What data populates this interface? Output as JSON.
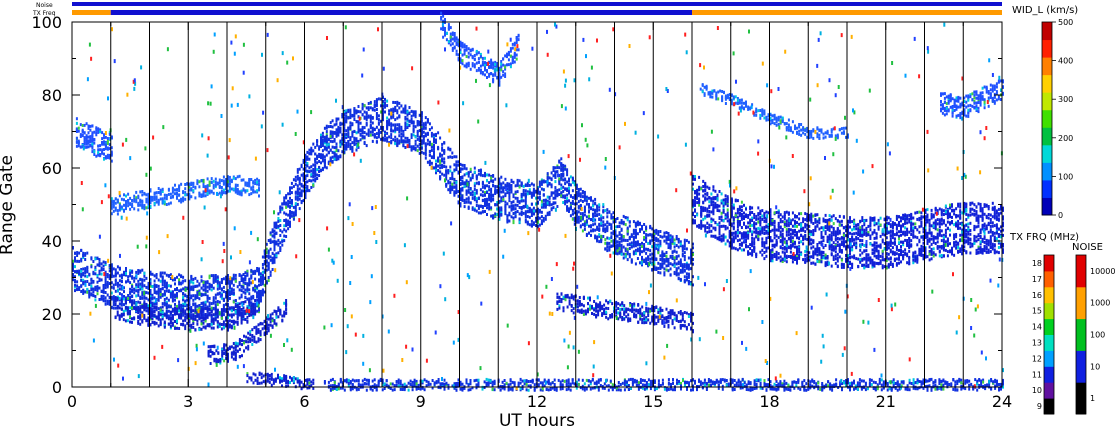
{
  "chart_data": {
    "type": "heatmap",
    "xlabel": "UT hours",
    "ylabel": "Range Gate",
    "xlim": [
      0,
      24
    ],
    "ylim": [
      0,
      100
    ],
    "x_ticks": [
      0,
      3,
      6,
      9,
      12,
      15,
      18,
      21,
      24
    ],
    "y_ticks": [
      0,
      20,
      40,
      60,
      80,
      100
    ],
    "grid": "vertical lines at each hour",
    "status_bars": {
      "noise_label": "Noise",
      "txfreq_label": "TX Freq",
      "noise_color": "#1010d0",
      "txfreq_segments": [
        {
          "start": 0,
          "end": 1,
          "color": "#ff9a00"
        },
        {
          "start": 1,
          "end": 16,
          "color": "#1010d0"
        },
        {
          "start": 16,
          "end": 24,
          "color": "#ff9a00"
        }
      ]
    },
    "main_colorbar": {
      "title": "WID_L (km/s)",
      "ticks": [
        0,
        100,
        200,
        300,
        400,
        500
      ],
      "range": [
        0,
        500
      ],
      "colors": [
        "#0000b8",
        "#0030ff",
        "#0090ff",
        "#00d8d8",
        "#00c040",
        "#40e000",
        "#c0e800",
        "#ffd000",
        "#ff8000",
        "#ff2000",
        "#c00000"
      ]
    },
    "txfreq_colorbar": {
      "title": "TX FRQ (MHz)",
      "ticks": [
        "9",
        "10",
        "11",
        "12",
        "13",
        "14",
        "15",
        "16",
        "17",
        "18"
      ],
      "colors": [
        "#000000",
        "#6010a0",
        "#1020e0",
        "#00a0ff",
        "#00e0c0",
        "#00d020",
        "#a0e000",
        "#ffc000",
        "#ff6000",
        "#e00000"
      ]
    },
    "noise_colorbar": {
      "title": "NOISE",
      "ticks": [
        "1",
        "10",
        "100",
        "1000",
        "10000"
      ],
      "colors": [
        "#000000",
        "#1020e0",
        "#00c020",
        "#ffa000",
        "#e00000"
      ]
    },
    "echo_bands": [
      {
        "name": "early band",
        "points": [
          [
            0,
            33
          ],
          [
            1,
            28
          ],
          [
            2,
            26
          ],
          [
            3,
            25
          ],
          [
            4,
            25
          ],
          [
            4.8,
            27
          ],
          [
            5.2,
            40
          ],
          [
            5.6,
            50
          ],
          [
            6.0,
            58
          ],
          [
            6.5,
            66
          ],
          [
            7,
            70
          ],
          [
            8,
            74
          ],
          [
            9,
            70
          ],
          [
            10,
            56
          ],
          [
            11,
            52
          ],
          [
            12,
            50
          ],
          [
            12.6,
            57
          ],
          [
            13,
            50
          ],
          [
            14,
            42
          ],
          [
            15,
            38
          ],
          [
            16,
            34
          ]
        ],
        "width": 12,
        "color": "#1030e0"
      },
      {
        "name": "upper cluster",
        "points": [
          [
            0.1,
            70
          ],
          [
            0.5,
            68
          ],
          [
            1.0,
            66
          ]
        ],
        "width": 8,
        "color": "#2050ff"
      },
      {
        "name": "low band",
        "points": [
          [
            1.1,
            22
          ],
          [
            2,
            20
          ],
          [
            3,
            19
          ],
          [
            4,
            19
          ],
          [
            4.7,
            22
          ]
        ],
        "width": 6,
        "color": "#1020d0"
      },
      {
        "name": "mid band",
        "points": [
          [
            3.5,
            9
          ],
          [
            4.2,
            10
          ],
          [
            5,
            17
          ],
          [
            5.5,
            22
          ]
        ],
        "width": 5,
        "color": "#1020d0"
      },
      {
        "name": "far band",
        "points": [
          [
            1,
            50
          ],
          [
            2,
            52
          ],
          [
            3,
            54
          ],
          [
            4,
            56
          ],
          [
            4.8,
            55
          ]
        ],
        "width": 5,
        "color": "#2060ff"
      },
      {
        "name": "late band",
        "points": [
          [
            16,
            52
          ],
          [
            17,
            45
          ],
          [
            18,
            42
          ],
          [
            19,
            41
          ],
          [
            20,
            40
          ],
          [
            21,
            40
          ],
          [
            22,
            42
          ],
          [
            23,
            44
          ],
          [
            24,
            44
          ]
        ],
        "width": 14,
        "color": "#1020d8"
      },
      {
        "name": "late upper",
        "points": [
          [
            22.4,
            78
          ],
          [
            23,
            77
          ],
          [
            24,
            82
          ]
        ],
        "width": 6,
        "color": "#2050ff"
      },
      {
        "name": "late mid",
        "points": [
          [
            16.2,
            82
          ],
          [
            17,
            79
          ],
          [
            18,
            74
          ],
          [
            19,
            70
          ],
          [
            20,
            70
          ]
        ],
        "width": 3,
        "color": "#2060ff"
      },
      {
        "name": "cusp",
        "points": [
          [
            9.5,
            100
          ],
          [
            10,
            92
          ],
          [
            11,
            86
          ],
          [
            11.5,
            94
          ]
        ],
        "width": 6,
        "color": "#2050ff"
      },
      {
        "name": "late low",
        "points": [
          [
            12.5,
            24
          ],
          [
            13.5,
            22
          ],
          [
            15,
            20
          ],
          [
            16,
            18
          ]
        ],
        "width": 5,
        "color": "#1020d0"
      },
      {
        "name": "ground",
        "points": [
          [
            6.5,
            1
          ],
          [
            10,
            1
          ],
          [
            16,
            1
          ],
          [
            20,
            1
          ],
          [
            24,
            1
          ]
        ],
        "width": 3,
        "color": "#1030e0"
      },
      {
        "name": "early ground",
        "points": [
          [
            4.5,
            3
          ],
          [
            5.5,
            2
          ],
          [
            6.2,
            1
          ]
        ],
        "width": 3,
        "color": "#1020d0"
      }
    ]
  }
}
